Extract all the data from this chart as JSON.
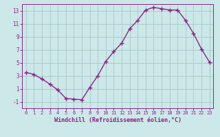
{
  "x": [
    0,
    1,
    2,
    3,
    4,
    5,
    6,
    7,
    8,
    9,
    10,
    11,
    12,
    13,
    14,
    15,
    16,
    17,
    18,
    19,
    20,
    21,
    22,
    23
  ],
  "y": [
    3.5,
    3.2,
    2.5,
    1.7,
    0.8,
    -0.5,
    -0.6,
    -0.7,
    1.2,
    3.0,
    5.2,
    6.7,
    8.0,
    10.2,
    11.5,
    13.1,
    13.5,
    13.3,
    13.1,
    13.1,
    11.5,
    9.5,
    7.1,
    5.1
  ],
  "line_color": "#882288",
  "marker": "+",
  "marker_size": 4,
  "bg_color": "#cce8e8",
  "grid_color": "#aacccc",
  "xlabel": "Windchill (Refroidissement éolien,°C)",
  "xlabel_color": "#882288",
  "tick_color": "#882288",
  "xlim": [
    -0.5,
    23.5
  ],
  "ylim": [
    -2,
    14
  ],
  "yticks": [
    -1,
    1,
    3,
    5,
    7,
    9,
    11,
    13
  ],
  "xticks": [
    0,
    1,
    2,
    3,
    4,
    5,
    6,
    7,
    8,
    9,
    10,
    11,
    12,
    13,
    14,
    15,
    16,
    17,
    18,
    19,
    20,
    21,
    22,
    23
  ],
  "xtick_labels": [
    "0",
    "1",
    "2",
    "3",
    "4",
    "5",
    "6",
    "7",
    "8",
    "9",
    "10",
    "11",
    "12",
    "13",
    "14",
    "15",
    "16",
    "17",
    "18",
    "19",
    "20",
    "21",
    "22",
    "23"
  ],
  "ytick_labels": [
    "-1",
    "1",
    "3",
    "5",
    "7",
    "9",
    "11",
    "13"
  ],
  "line_width": 1.0,
  "marker_edge_width": 1.0,
  "font_family": "monospace"
}
